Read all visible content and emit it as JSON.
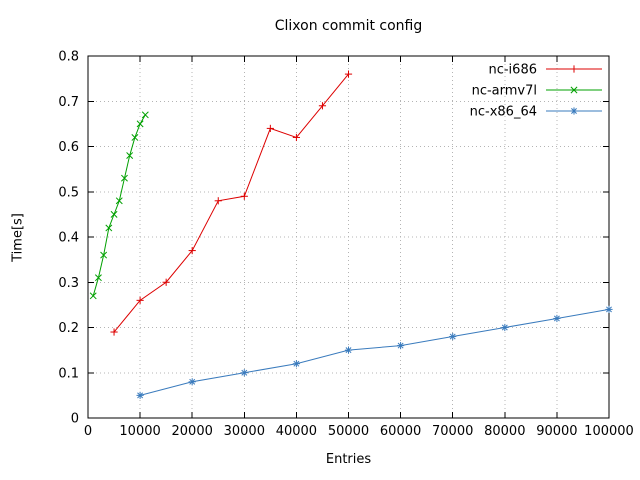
{
  "title": "Clixon commit config",
  "chart_data": {
    "type": "line",
    "title": "Clixon commit config",
    "xlabel": "Entries",
    "ylabel": "Time[s]",
    "xlim": [
      0,
      100000
    ],
    "ylim": [
      0,
      0.8
    ],
    "xticks": [
      0,
      10000,
      20000,
      30000,
      40000,
      50000,
      60000,
      70000,
      80000,
      90000,
      100000
    ],
    "yticks": [
      0,
      0.1,
      0.2,
      0.3,
      0.4,
      0.5,
      0.6,
      0.7,
      0.8
    ],
    "grid": true,
    "grid_color": "#b4b4b4",
    "border_color": "#000000",
    "text_color": "#000000",
    "legend_position": "top-right",
    "series": [
      {
        "name": "nc-i686",
        "color": "#dd0000",
        "marker": "plus",
        "points": [
          [
            5000,
            0.19
          ],
          [
            10000,
            0.26
          ],
          [
            15000,
            0.3
          ],
          [
            20000,
            0.37
          ],
          [
            25000,
            0.48
          ],
          [
            30000,
            0.49
          ],
          [
            35000,
            0.64
          ],
          [
            40000,
            0.62
          ],
          [
            45000,
            0.69
          ],
          [
            50000,
            0.76
          ]
        ]
      },
      {
        "name": "nc-armv7l",
        "color": "#00a000",
        "marker": "x",
        "points": [
          [
            1000,
            0.27
          ],
          [
            2000,
            0.31
          ],
          [
            3000,
            0.36
          ],
          [
            4000,
            0.42
          ],
          [
            5000,
            0.45
          ],
          [
            6000,
            0.48
          ],
          [
            7000,
            0.53
          ],
          [
            8000,
            0.58
          ],
          [
            9000,
            0.62
          ],
          [
            10000,
            0.65
          ],
          [
            11000,
            0.67
          ]
        ]
      },
      {
        "name": "nc-x86_64",
        "color": "#3a7bbd",
        "marker": "asterisk",
        "points": [
          [
            10000,
            0.05
          ],
          [
            20000,
            0.08
          ],
          [
            30000,
            0.1
          ],
          [
            40000,
            0.12
          ],
          [
            50000,
            0.15
          ],
          [
            60000,
            0.16
          ],
          [
            70000,
            0.18
          ],
          [
            80000,
            0.2
          ],
          [
            90000,
            0.22
          ],
          [
            100000,
            0.24
          ]
        ]
      }
    ]
  }
}
